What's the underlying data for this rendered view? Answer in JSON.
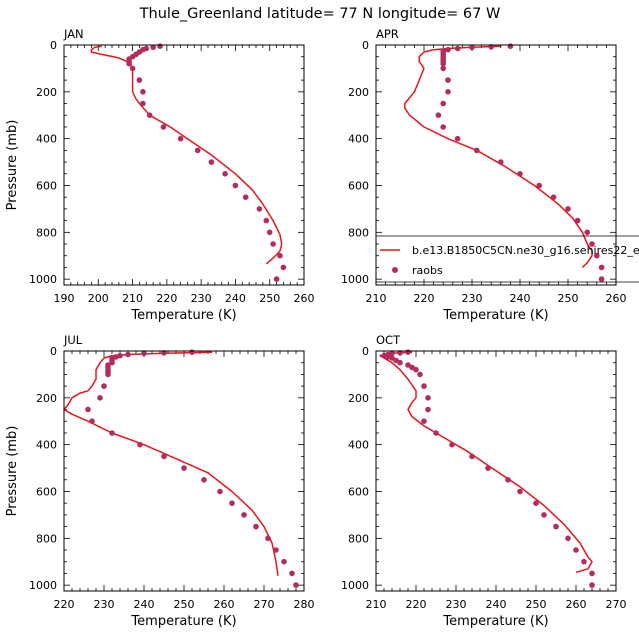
{
  "suptitle": "Thule_Greenland  latitude= 77 N longitude= 67 W",
  "legend": {
    "model_label": "b.e13.B1850C5CN.ne30_g16.sehires22_e",
    "obs_label": "raobs"
  },
  "colors": {
    "model": "#e8161b",
    "obs": "#b22d5e",
    "axis": "#000000"
  },
  "chart_data": [
    {
      "type": "line",
      "title": "JAN",
      "xlabel": "Temperature (K)",
      "ylabel": "Pressure (mb)",
      "xlim": [
        190,
        260
      ],
      "ylim": [
        1025,
        0
      ],
      "xticks": [
        190,
        200,
        210,
        220,
        230,
        240,
        250,
        260
      ],
      "yticks": [
        0,
        200,
        400,
        600,
        800,
        1000
      ],
      "series": [
        {
          "name": "b.e13.B1850C5CN.ne30_g16.sehires22_e",
          "kind": "line",
          "points": [
            [
              201,
              5
            ],
            [
              199,
              10
            ],
            [
              198,
              20
            ],
            [
              198,
              30
            ],
            [
              201,
              40
            ],
            [
              206,
              55
            ],
            [
              209,
              75
            ],
            [
              210,
              100
            ],
            [
              210,
              150
            ],
            [
              210,
              200
            ],
            [
              211,
              230
            ],
            [
              212,
              250
            ],
            [
              215,
              300
            ],
            [
              221,
              350
            ],
            [
              226,
              400
            ],
            [
              233,
              470
            ],
            [
              240,
              550
            ],
            [
              245,
              620
            ],
            [
              248,
              680
            ],
            [
              251,
              750
            ],
            [
              253,
              810
            ],
            [
              253.5,
              850
            ],
            [
              253,
              880
            ],
            [
              251,
              910
            ],
            [
              249,
              935
            ]
          ]
        },
        {
          "name": "raobs",
          "kind": "scatter",
          "points": [
            [
              218,
              5
            ],
            [
              216,
              10
            ],
            [
              214,
              15
            ],
            [
              213,
              20
            ],
            [
              212,
              30
            ],
            [
              211,
              40
            ],
            [
              210,
              50
            ],
            [
              209,
              60
            ],
            [
              209,
              70
            ],
            [
              209,
              80
            ],
            [
              210,
              100
            ],
            [
              212,
              150
            ],
            [
              213,
              200
            ],
            [
              213,
              250
            ],
            [
              215,
              300
            ],
            [
              219,
              350
            ],
            [
              224,
              400
            ],
            [
              229,
              450
            ],
            [
              233,
              500
            ],
            [
              237,
              550
            ],
            [
              240,
              600
            ],
            [
              243,
              650
            ],
            [
              247,
              700
            ],
            [
              249,
              750
            ],
            [
              250,
              800
            ],
            [
              251,
              850
            ],
            [
              253,
              900
            ],
            [
              254,
              950
            ],
            [
              252,
              1000
            ]
          ]
        }
      ]
    },
    {
      "type": "line",
      "title": "APR",
      "xlabel": "Temperature (K)",
      "ylabel": "",
      "xlim": [
        210,
        260
      ],
      "ylim": [
        1025,
        0
      ],
      "xticks": [
        210,
        220,
        230,
        240,
        250,
        260
      ],
      "yticks": [
        0,
        200,
        400,
        600,
        800,
        1000
      ],
      "series": [
        {
          "name": "b.e13.B1850C5CN.ne30_g16.sehires22_e",
          "kind": "line",
          "points": [
            [
              236,
              5
            ],
            [
              230,
              10
            ],
            [
              225,
              15
            ],
            [
              222,
              20
            ],
            [
              220,
              30
            ],
            [
              219,
              50
            ],
            [
              219,
              70
            ],
            [
              220,
              100
            ],
            [
              219,
              150
            ],
            [
              218,
              200
            ],
            [
              216,
              250
            ],
            [
              216,
              270
            ],
            [
              217,
              300
            ],
            [
              220,
              350
            ],
            [
              225,
              400
            ],
            [
              231,
              450
            ],
            [
              237,
              520
            ],
            [
              243,
              600
            ],
            [
              248,
              680
            ],
            [
              251,
              740
            ],
            [
              253,
              800
            ],
            [
              254,
              850
            ],
            [
              255,
              880
            ],
            [
              255,
              900
            ],
            [
              254,
              930
            ],
            [
              253,
              950
            ]
          ]
        },
        {
          "name": "raobs",
          "kind": "scatter",
          "points": [
            [
              238,
              5
            ],
            [
              234,
              8
            ],
            [
              230,
              10
            ],
            [
              227,
              15
            ],
            [
              225,
              20
            ],
            [
              224,
              25
            ],
            [
              224,
              30
            ],
            [
              224,
              40
            ],
            [
              224,
              50
            ],
            [
              224,
              60
            ],
            [
              224,
              70
            ],
            [
              224,
              80
            ],
            [
              224,
              100
            ],
            [
              225,
              150
            ],
            [
              225,
              200
            ],
            [
              224,
              250
            ],
            [
              223,
              300
            ],
            [
              224,
              350
            ],
            [
              227,
              400
            ],
            [
              231,
              450
            ],
            [
              236,
              500
            ],
            [
              240,
              550
            ],
            [
              244,
              600
            ],
            [
              247,
              650
            ],
            [
              250,
              700
            ],
            [
              252,
              750
            ],
            [
              254,
              800
            ],
            [
              255,
              850
            ],
            [
              256,
              900
            ],
            [
              257,
              950
            ],
            [
              257,
              1000
            ]
          ]
        }
      ]
    },
    {
      "type": "line",
      "title": "JUL",
      "xlabel": "Temperature (K)",
      "ylabel": "Pressure (mb)",
      "xlim": [
        220,
        280
      ],
      "ylim": [
        1025,
        0
      ],
      "xticks": [
        220,
        230,
        240,
        250,
        260,
        270,
        280
      ],
      "yticks": [
        0,
        200,
        400,
        600,
        800,
        1000
      ],
      "series": [
        {
          "name": "b.e13.B1850C5CN.ne30_g16.sehires22_e",
          "kind": "line",
          "points": [
            [
              257,
              5
            ],
            [
              245,
              10
            ],
            [
              236,
              15
            ],
            [
              232,
              20
            ],
            [
              230,
              30
            ],
            [
              229,
              50
            ],
            [
              228,
              80
            ],
            [
              228,
              120
            ],
            [
              227,
              150
            ],
            [
              226,
              170
            ],
            [
              224,
              180
            ],
            [
              222,
              200
            ],
            [
              221,
              230
            ],
            [
              220,
              250
            ],
            [
              222,
              270
            ],
            [
              226,
              300
            ],
            [
              232,
              350
            ],
            [
              240,
              400
            ],
            [
              248,
              460
            ],
            [
              256,
              520
            ],
            [
              262,
              600
            ],
            [
              267,
              680
            ],
            [
              270,
              750
            ],
            [
              272,
              820
            ],
            [
              273,
              900
            ],
            [
              273.5,
              960
            ]
          ]
        },
        {
          "name": "raobs",
          "kind": "scatter",
          "points": [
            [
              252,
              5
            ],
            [
              245,
              8
            ],
            [
              240,
              10
            ],
            [
              236,
              15
            ],
            [
              234,
              20
            ],
            [
              233,
              25
            ],
            [
              232,
              30
            ],
            [
              232,
              40
            ],
            [
              232,
              50
            ],
            [
              231,
              60
            ],
            [
              231,
              70
            ],
            [
              231,
              80
            ],
            [
              231,
              90
            ],
            [
              231,
              100
            ],
            [
              230,
              150
            ],
            [
              229,
              200
            ],
            [
              226,
              250
            ],
            [
              227,
              300
            ],
            [
              232,
              350
            ],
            [
              239,
              400
            ],
            [
              245,
              450
            ],
            [
              250,
              500
            ],
            [
              255,
              550
            ],
            [
              259,
              600
            ],
            [
              262,
              650
            ],
            [
              265,
              700
            ],
            [
              268,
              750
            ],
            [
              271,
              800
            ],
            [
              273,
              850
            ],
            [
              275,
              900
            ],
            [
              277,
              950
            ],
            [
              278,
              1000
            ]
          ]
        }
      ]
    },
    {
      "type": "line",
      "title": "OCT",
      "xlabel": "Temperature (K)",
      "ylabel": "",
      "xlim": [
        210,
        270
      ],
      "ylim": [
        1025,
        0
      ],
      "xticks": [
        210,
        220,
        230,
        240,
        250,
        260,
        270
      ],
      "yticks": [
        0,
        200,
        400,
        600,
        800,
        1000
      ],
      "series": [
        {
          "name": "b.e13.B1850C5CN.ne30_g16.sehires22_e",
          "kind": "line",
          "points": [
            [
              219,
              5
            ],
            [
              213,
              10
            ],
            [
              211,
              20
            ],
            [
              212,
              30
            ],
            [
              214,
              50
            ],
            [
              216,
              80
            ],
            [
              218,
              120
            ],
            [
              220,
              170
            ],
            [
              220,
              200
            ],
            [
              219,
              220
            ],
            [
              218,
              250
            ],
            [
              219,
              280
            ],
            [
              222,
              320
            ],
            [
              227,
              370
            ],
            [
              233,
              430
            ],
            [
              239,
              500
            ],
            [
              246,
              580
            ],
            [
              252,
              660
            ],
            [
              257,
              740
            ],
            [
              261,
              820
            ],
            [
              263,
              880
            ],
            [
              264,
              900
            ],
            [
              263,
              930
            ],
            [
              260,
              945
            ]
          ]
        },
        {
          "name": "raobs",
          "kind": "scatter",
          "points": [
            [
              218,
              5
            ],
            [
              216,
              8
            ],
            [
              214,
              10
            ],
            [
              213,
              15
            ],
            [
              212,
              20
            ],
            [
              213,
              25
            ],
            [
              214,
              30
            ],
            [
              215,
              40
            ],
            [
              216,
              50
            ],
            [
              218,
              60
            ],
            [
              219,
              70
            ],
            [
              220,
              80
            ],
            [
              221,
              100
            ],
            [
              222,
              150
            ],
            [
              223,
              200
            ],
            [
              223,
              250
            ],
            [
              222,
              300
            ],
            [
              225,
              350
            ],
            [
              229,
              400
            ],
            [
              234,
              450
            ],
            [
              238,
              500
            ],
            [
              243,
              550
            ],
            [
              246,
              600
            ],
            [
              250,
              650
            ],
            [
              252,
              700
            ],
            [
              255,
              750
            ],
            [
              258,
              800
            ],
            [
              260,
              850
            ],
            [
              262,
              900
            ],
            [
              264,
              950
            ],
            [
              264,
              1000
            ]
          ]
        }
      ]
    }
  ]
}
